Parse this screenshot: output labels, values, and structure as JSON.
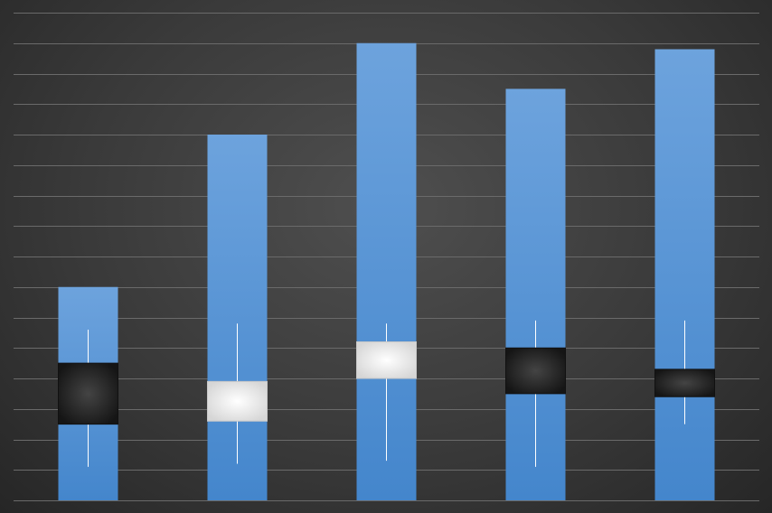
{
  "chart_data": {
    "type": "bar",
    "subtype": "bar-with-stock-overlay",
    "title": "",
    "xlabel": "",
    "ylabel": "",
    "ylim": [
      0,
      16
    ],
    "grid": true,
    "legend": "none",
    "categories": [
      "",
      "",
      "",
      "",
      ""
    ],
    "series": [
      {
        "type": "bar",
        "values": [
          7.0,
          12.0,
          15.0,
          13.5,
          14.8
        ]
      },
      {
        "type": "candlestick",
        "open": [
          4.5,
          2.6,
          4.0,
          5.0,
          4.3
        ],
        "close": [
          2.5,
          3.9,
          5.2,
          3.5,
          3.4
        ],
        "high": [
          5.6,
          5.8,
          5.8,
          5.9,
          5.9
        ],
        "low": [
          1.1,
          1.2,
          1.3,
          1.1,
          2.5
        ]
      }
    ],
    "colors": {
      "bar_top": "#6da3dd",
      "bar_bottom": "#4486cc",
      "gridline": "#6a6a6a",
      "up_box": "#f2f2f2",
      "down_box": "#2a2a2a",
      "wick": "#ffffff"
    }
  }
}
